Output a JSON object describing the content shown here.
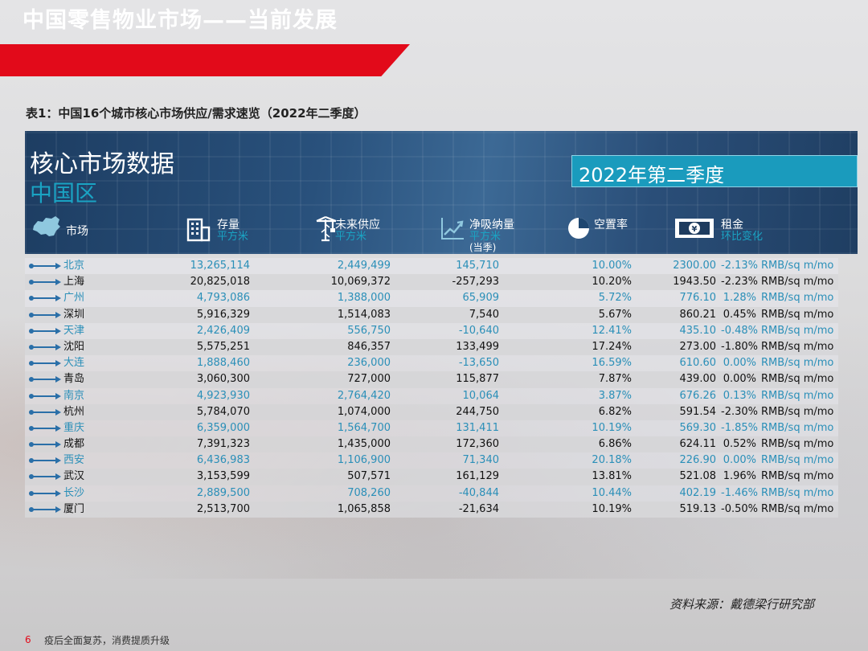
{
  "banner": {
    "title": "中国零售物业市场——当前发展"
  },
  "caption": "表1：中国16个城市核心市场供应/需求速览（2022年二季度）",
  "panel": {
    "title": "核心市场数据",
    "subtitle": "中国区",
    "period": "2022年第二季度",
    "columns": {
      "market": {
        "label": "市场",
        "icon": "china-map-icon"
      },
      "stock": {
        "label": "存量",
        "unit": "平方米",
        "icon": "building-icon"
      },
      "supply": {
        "label": "未来供应",
        "unit": "平方米",
        "icon": "crane-icon"
      },
      "absorption": {
        "label": "净吸纳量",
        "unit": "平方米",
        "note": "(当季)",
        "icon": "trend-chart-icon"
      },
      "vacancy": {
        "label": "空置率",
        "icon": "pie-chart-icon"
      },
      "rent": {
        "label": "租金",
        "unit": "环比变化",
        "icon": "yen-banknote-icon"
      }
    }
  },
  "rows": [
    {
      "city": "北京",
      "stock": "13,265,114",
      "supply": "2,449,499",
      "absorption": "145,710",
      "vacancy": "10.00%",
      "rent": "2300.00",
      "change": "-2.13%",
      "unit": "RMB/sq m/mo"
    },
    {
      "city": "上海",
      "stock": "20,825,018",
      "supply": "10,069,372",
      "absorption": "-257,293",
      "vacancy": "10.20%",
      "rent": "1943.50",
      "change": "-2.23%",
      "unit": "RMB/sq m/mo"
    },
    {
      "city": "广州",
      "stock": "4,793,086",
      "supply": "1,388,000",
      "absorption": "65,909",
      "vacancy": "5.72%",
      "rent": "776.10",
      "change": "1.28%",
      "unit": "RMB/sq m/mo"
    },
    {
      "city": "深圳",
      "stock": "5,916,329",
      "supply": "1,514,083",
      "absorption": "7,540",
      "vacancy": "5.67%",
      "rent": "860.21",
      "change": "0.45%",
      "unit": "RMB/sq m/mo"
    },
    {
      "city": "天津",
      "stock": "2,426,409",
      "supply": "556,750",
      "absorption": "-10,640",
      "vacancy": "12.41%",
      "rent": "435.10",
      "change": "-0.48%",
      "unit": "RMB/sq m/mo"
    },
    {
      "city": "沈阳",
      "stock": "5,575,251",
      "supply": "846,357",
      "absorption": "133,499",
      "vacancy": "17.24%",
      "rent": "273.00",
      "change": "-1.80%",
      "unit": "RMB/sq m/mo"
    },
    {
      "city": "大连",
      "stock": "1,888,460",
      "supply": "236,000",
      "absorption": "-13,650",
      "vacancy": "16.59%",
      "rent": "610.60",
      "change": "0.00%",
      "unit": "RMB/sq m/mo"
    },
    {
      "city": "青岛",
      "stock": "3,060,300",
      "supply": "727,000",
      "absorption": "115,877",
      "vacancy": "7.87%",
      "rent": "439.00",
      "change": "0.00%",
      "unit": "RMB/sq m/mo"
    },
    {
      "city": "南京",
      "stock": "4,923,930",
      "supply": "2,764,420",
      "absorption": "10,064",
      "vacancy": "3.87%",
      "rent": "676.26",
      "change": "0.13%",
      "unit": "RMB/sq m/mo"
    },
    {
      "city": "杭州",
      "stock": "5,784,070",
      "supply": "1,074,000",
      "absorption": "244,750",
      "vacancy": "6.82%",
      "rent": "591.54",
      "change": "-2.30%",
      "unit": "RMB/sq m/mo"
    },
    {
      "city": "重庆",
      "stock": "6,359,000",
      "supply": "1,564,700",
      "absorption": "131,411",
      "vacancy": "10.19%",
      "rent": "569.30",
      "change": "-1.85%",
      "unit": "RMB/sq m/mo"
    },
    {
      "city": "成都",
      "stock": "7,391,323",
      "supply": "1,435,000",
      "absorption": "172,360",
      "vacancy": "6.86%",
      "rent": "624.11",
      "change": "0.52%",
      "unit": "RMB/sq m/mo"
    },
    {
      "city": "西安",
      "stock": "6,436,983",
      "supply": "1,106,900",
      "absorption": "71,340",
      "vacancy": "20.18%",
      "rent": "226.90",
      "change": "0.00%",
      "unit": "RMB/sq m/mo"
    },
    {
      "city": "武汉",
      "stock": "3,153,599",
      "supply": "507,571",
      "absorption": "161,129",
      "vacancy": "13.81%",
      "rent": "521.08",
      "change": "1.96%",
      "unit": "RMB/sq m/mo"
    },
    {
      "city": "长沙",
      "stock": "2,889,500",
      "supply": "708,260",
      "absorption": "-40,844",
      "vacancy": "10.44%",
      "rent": "402.19",
      "change": "-1.46%",
      "unit": "RMB/sq m/mo"
    },
    {
      "city": "厦门",
      "stock": "2,513,700",
      "supply": "1,065,858",
      "absorption": "-21,634",
      "vacancy": "10.19%",
      "rent": "519.13",
      "change": "-0.50%",
      "unit": "RMB/sq m/mo"
    }
  ],
  "source": "资料来源：戴德梁行研究部",
  "footer": {
    "page": "6",
    "text": "疫后全面复苏，消费提质升级"
  },
  "colors": {
    "brand_red": "#e20a1a",
    "panel_blue": "#29517c",
    "accent_cyan": "#1aa3c3",
    "row_teal": "#2a8fb8"
  }
}
